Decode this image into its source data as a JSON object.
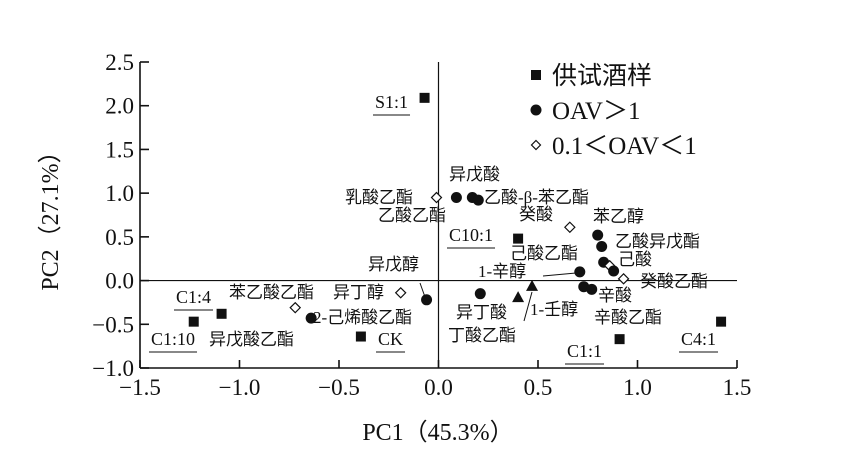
{
  "chart_data": {
    "type": "scatter",
    "title": "",
    "xlabel": "PC1（45.3%）",
    "ylabel": "PC2（27.1%）",
    "xlim": [
      -1.5,
      1.5
    ],
    "ylim": [
      -1.0,
      2.5
    ],
    "xticks": [
      "−1.5",
      "−1.0",
      "−0.5",
      "0.0",
      "0.5",
      "1.0",
      "1.5"
    ],
    "xtick_values": [
      -1.5,
      -1.0,
      -0.5,
      0.0,
      0.5,
      1.0,
      1.5
    ],
    "yticks": [
      "2.5",
      "2.0",
      "1.5",
      "1.0",
      "0.5",
      "0.0",
      "−0.5",
      "−1.0"
    ],
    "ytick_values": [
      2.5,
      2.0,
      1.5,
      1.0,
      0.5,
      0.0,
      -0.5,
      -1.0
    ],
    "grid": false,
    "legend_position": "top-right",
    "legend": [
      {
        "group": "sample",
        "label": "供试酒样",
        "marker": "square"
      },
      {
        "group": "oav_gt1",
        "label": "OAV＞1",
        "marker": "circle"
      },
      {
        "group": "oav_01_1",
        "label": "0.1＜OAV＜1",
        "marker": "diamond"
      }
    ],
    "points": [
      {
        "name": "S1:1",
        "group": "sample",
        "pc1": -0.07,
        "pc2": 2.09
      },
      {
        "name": "C10:1",
        "group": "sample",
        "pc1": 0.4,
        "pc2": 0.48
      },
      {
        "name": "C1:4",
        "group": "sample",
        "pc1": -1.09,
        "pc2": -0.38
      },
      {
        "name": "C1:10",
        "group": "sample",
        "pc1": -1.23,
        "pc2": -0.47
      },
      {
        "name": "CK",
        "group": "sample",
        "pc1": -0.39,
        "pc2": -0.64
      },
      {
        "name": "C1:1",
        "group": "sample",
        "pc1": 0.91,
        "pc2": -0.67
      },
      {
        "name": "C4:1",
        "group": "sample",
        "pc1": 1.42,
        "pc2": -0.47
      },
      {
        "name": "乳酸乙酯",
        "group": "oav_01_1",
        "pc1": -0.01,
        "pc2": 0.95
      },
      {
        "name": "乙酸乙酯",
        "group": "oav_gt1",
        "pc1": 0.09,
        "pc2": 0.95
      },
      {
        "name": "异戊酸",
        "group": "oav_gt1",
        "pc1": 0.17,
        "pc2": 0.95
      },
      {
        "name": "乙酸-β-苯乙酯",
        "group": "oav_gt1",
        "pc1": 0.2,
        "pc2": 0.92
      },
      {
        "name": "癸酸",
        "group": "oav_01_1",
        "pc1": 0.66,
        "pc2": 0.61
      },
      {
        "name": "苯乙醇",
        "group": "oav_gt1",
        "pc1": 0.8,
        "pc2": 0.52
      },
      {
        "name": "乙酸异戊酯",
        "group": "oav_gt1",
        "pc1": 0.82,
        "pc2": 0.39
      },
      {
        "name": "己酸乙酯",
        "group": "oav_gt1",
        "pc1": 0.83,
        "pc2": 0.21
      },
      {
        "name": "己酸",
        "group": "oav_01_1",
        "pc1": 0.86,
        "pc2": 0.17
      },
      {
        "name": "",
        "group": "oav_gt1",
        "pc1": 0.88,
        "pc2": 0.11
      },
      {
        "name": "1-辛醇",
        "group": "oav_gt1",
        "pc1": 0.71,
        "pc2": 0.1
      },
      {
        "name": "癸酸乙酯",
        "group": "oav_01_1",
        "pc1": 0.93,
        "pc2": 0.02
      },
      {
        "name": "辛酸",
        "group": "oav_gt1",
        "pc1": 0.73,
        "pc2": -0.07
      },
      {
        "name": "辛酸乙酯",
        "group": "oav_gt1",
        "pc1": 0.77,
        "pc2": -0.1
      },
      {
        "name": "异丁酸",
        "group": "oav_gt1",
        "pc1": 0.21,
        "pc2": -0.15
      },
      {
        "name": "丁酸乙酯",
        "group": "triangle",
        "pc1": 0.4,
        "pc2": -0.19
      },
      {
        "name": "1-壬醇",
        "group": "triangle",
        "pc1": 0.47,
        "pc2": -0.06
      },
      {
        "name": "异戊醇",
        "group": "oav_gt1",
        "pc1": -0.06,
        "pc2": -0.22
      },
      {
        "name": "异丁醇",
        "group": "oav_01_1",
        "pc1": -0.19,
        "pc2": -0.14
      },
      {
        "name": "苯乙酸乙酯",
        "group": "oav_01_1",
        "pc1": -0.72,
        "pc2": -0.31
      },
      {
        "name": "2-己烯酸乙酯",
        "group": "oav_gt1",
        "pc1": -0.64,
        "pc2": -0.43
      }
    ],
    "annotations": [
      "异戊酸乙酯"
    ]
  }
}
